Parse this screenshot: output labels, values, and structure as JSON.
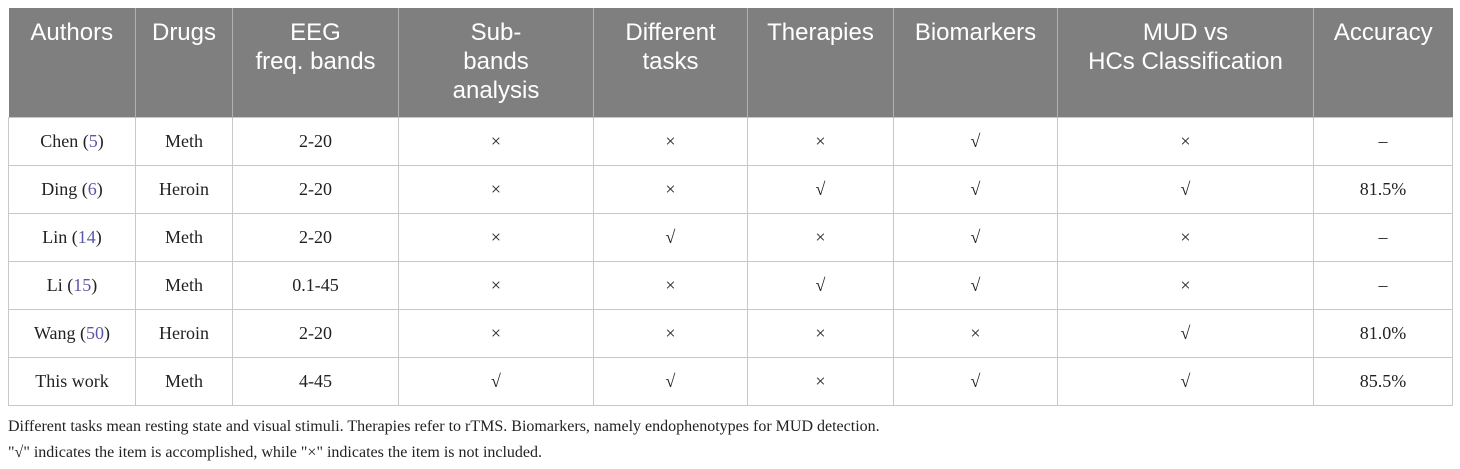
{
  "table": {
    "header": [
      [
        "Authors"
      ],
      [
        "Drugs"
      ],
      [
        "EEG",
        "freq. bands"
      ],
      [
        "Sub-",
        "bands",
        "analysis"
      ],
      [
        "Different",
        "tasks"
      ],
      [
        "Therapies"
      ],
      [
        "Biomarkers"
      ],
      [
        "MUD vs",
        "HCs Classification"
      ],
      [
        "Accuracy"
      ]
    ],
    "rows": [
      [
        [
          "Chen (",
          "5",
          ")"
        ],
        "Meth",
        "2-20",
        "×",
        "×",
        "×",
        "√",
        "×",
        "–"
      ],
      [
        [
          "Ding (",
          "6",
          ")"
        ],
        "Heroin",
        "2-20",
        "×",
        "×",
        "√",
        "√",
        "√",
        "81.5%"
      ],
      [
        [
          "Lin (",
          "14",
          ")"
        ],
        "Meth",
        "2-20",
        "×",
        "√",
        "×",
        "√",
        "×",
        "–"
      ],
      [
        [
          "Li (",
          "15",
          ")"
        ],
        "Meth",
        "0.1-45",
        "×",
        "×",
        "√",
        "√",
        "×",
        "–"
      ],
      [
        [
          "Wang (",
          "50",
          ")"
        ],
        "Heroin",
        "2-20",
        "×",
        "×",
        "×",
        "×",
        "√",
        "81.0%"
      ],
      [
        [
          "This work"
        ],
        "Meth",
        "4-45",
        "√",
        "√",
        "×",
        "√",
        "√",
        "85.5%"
      ]
    ]
  },
  "footnotes": [
    "Different tasks mean resting state and visual stimuli. Therapies refer to rTMS. Biomarkers, namely endophenotypes for MUD detection.",
    "\"√\" indicates the item is accomplished, while \"×\" indicates the item is not included."
  ]
}
